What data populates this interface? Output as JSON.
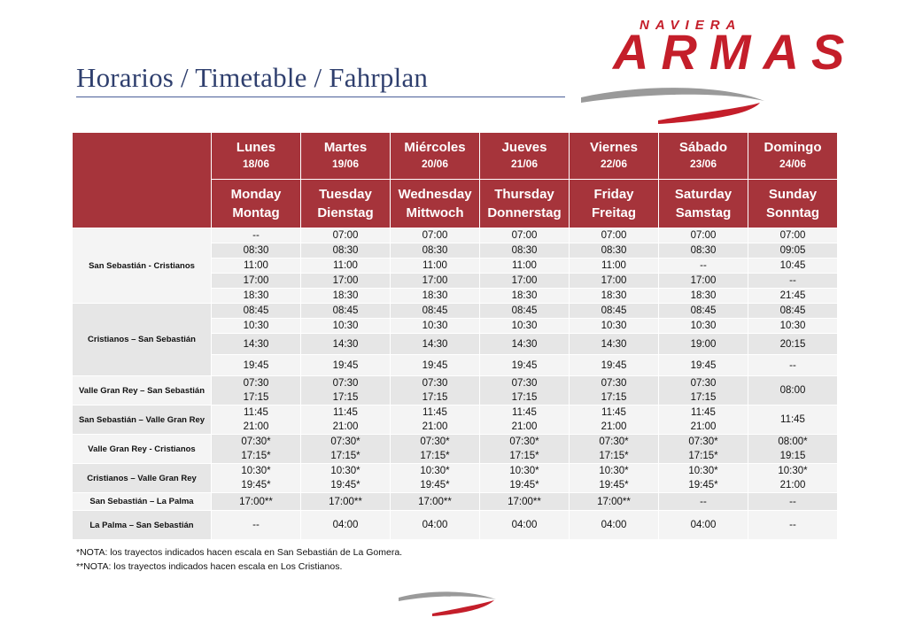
{
  "title": "Horarios / Timetable / Fahrplan",
  "logo": {
    "top": "NAVIERA",
    "main": "ARMAS"
  },
  "colors": {
    "header": "#a6343b",
    "brand": "#c41e2a",
    "title": "#2f3f6e"
  },
  "days": [
    {
      "es": "Lunes",
      "date": "18/06",
      "en": "Monday",
      "de": "Montag"
    },
    {
      "es": "Martes",
      "date": "19/06",
      "en": "Tuesday",
      "de": "Dienstag"
    },
    {
      "es": "Miércoles",
      "date": "20/06",
      "en": "Wednesday",
      "de": "Mittwoch"
    },
    {
      "es": "Jueves",
      "date": "21/06",
      "en": "Thursday",
      "de": "Donnerstag"
    },
    {
      "es": "Viernes",
      "date": "22/06",
      "en": "Friday",
      "de": "Freitag"
    },
    {
      "es": "Sábado",
      "date": "23/06",
      "en": "Saturday",
      "de": "Samstag"
    },
    {
      "es": "Domingo",
      "date": "24/06",
      "en": "Sunday",
      "de": "Sonntag"
    }
  ],
  "sections": [
    {
      "route": "San Sebastián - Cristianos",
      "rows": [
        [
          "--",
          "07:00",
          "07:00",
          "07:00",
          "07:00",
          "07:00",
          "07:00"
        ],
        [
          "08:30",
          "08:30",
          "08:30",
          "08:30",
          "08:30",
          "08:30",
          "09:05"
        ],
        [
          "11:00",
          "11:00",
          "11:00",
          "11:00",
          "11:00",
          "--",
          "10:45"
        ],
        [
          "17:00",
          "17:00",
          "17:00",
          "17:00",
          "17:00",
          "17:00",
          "--"
        ],
        [
          "18:30",
          "18:30",
          "18:30",
          "18:30",
          "18:30",
          "18:30",
          "21:45"
        ]
      ]
    },
    {
      "route": "Cristianos – San Sebastián",
      "rows": [
        [
          "08:45",
          "08:45",
          "08:45",
          "08:45",
          "08:45",
          "08:45",
          "08:45"
        ],
        [
          "10:30",
          "10:30",
          "10:30",
          "10:30",
          "10:30",
          "10:30",
          "10:30"
        ],
        [
          "14:30",
          "14:30",
          "14:30",
          "14:30",
          "14:30",
          "19:00",
          "20:15"
        ],
        [
          "19:45",
          "19:45",
          "19:45",
          "19:45",
          "19:45",
          "19:45",
          "--"
        ]
      ]
    },
    {
      "route": "Valle Gran Rey – San Sebastián",
      "rows": [
        [
          "07:30\n17:15",
          "07:30\n17:15",
          "07:30\n17:15",
          "07:30\n17:15",
          "07:30\n17:15",
          "07:30\n17:15",
          "08:00"
        ]
      ]
    },
    {
      "route": "San Sebastián – Valle Gran Rey",
      "rows": [
        [
          "11:45\n21:00",
          "11:45\n21:00",
          "11:45\n21:00",
          "11:45\n21:00",
          "11:45\n21:00",
          "11:45\n21:00",
          "11:45"
        ]
      ]
    },
    {
      "route": "Valle Gran Rey - Cristianos",
      "rows": [
        [
          "07:30*\n17:15*",
          "07:30*\n17:15*",
          "07:30*\n17:15*",
          "07:30*\n17:15*",
          "07:30*\n17:15*",
          "07:30*\n17:15*",
          "08:00*\n19:15"
        ]
      ]
    },
    {
      "route": "Cristianos – Valle Gran Rey",
      "rows": [
        [
          "10:30*\n19:45*",
          "10:30*\n19:45*",
          "10:30*\n19:45*",
          "10:30*\n19:45*",
          "10:30*\n19:45*",
          "10:30*\n19:45*",
          "10:30*\n21:00"
        ]
      ]
    },
    {
      "route": "San Sebastián – La Palma",
      "rows": [
        [
          "17:00**",
          "17:00**",
          "17:00**",
          "17:00**",
          "17:00**",
          "--",
          "--"
        ]
      ]
    },
    {
      "route": "La Palma – San Sebastián",
      "rows": [
        [
          "--",
          "04:00",
          "04:00",
          "04:00",
          "04:00",
          "04:00",
          "--"
        ]
      ]
    }
  ],
  "notes": [
    "*NOTA: los trayectos indicados hacen escala en San Sebastián de La Gomera.",
    "**NOTA: los trayectos indicados hacen escala en Los Cristianos."
  ]
}
